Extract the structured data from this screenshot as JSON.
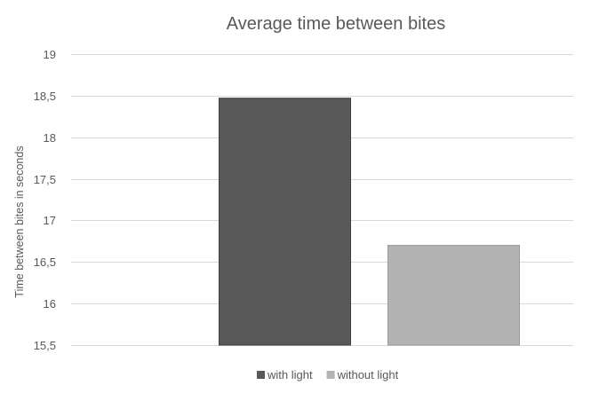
{
  "chart_data": {
    "type": "bar",
    "title": "Average time between bites",
    "xlabel": "",
    "ylabel": "Time between  bites in seconds",
    "categories": [
      ""
    ],
    "series": [
      {
        "name": "with light",
        "values": [
          18.47
        ],
        "color": "#595959",
        "stroke": "#404040"
      },
      {
        "name": "without light",
        "values": [
          16.7
        ],
        "color": "#b3b3b3",
        "stroke": "#9a9a9a"
      }
    ],
    "ylim": [
      15.5,
      19
    ],
    "yticks": [
      15.5,
      16,
      16.5,
      17,
      17.5,
      18,
      18.5,
      19
    ],
    "ytick_labels": [
      "15,5",
      "16",
      "16,5",
      "17",
      "17,5",
      "18",
      "18,5",
      "19"
    ],
    "grid": true,
    "legend_position": "bottom"
  }
}
